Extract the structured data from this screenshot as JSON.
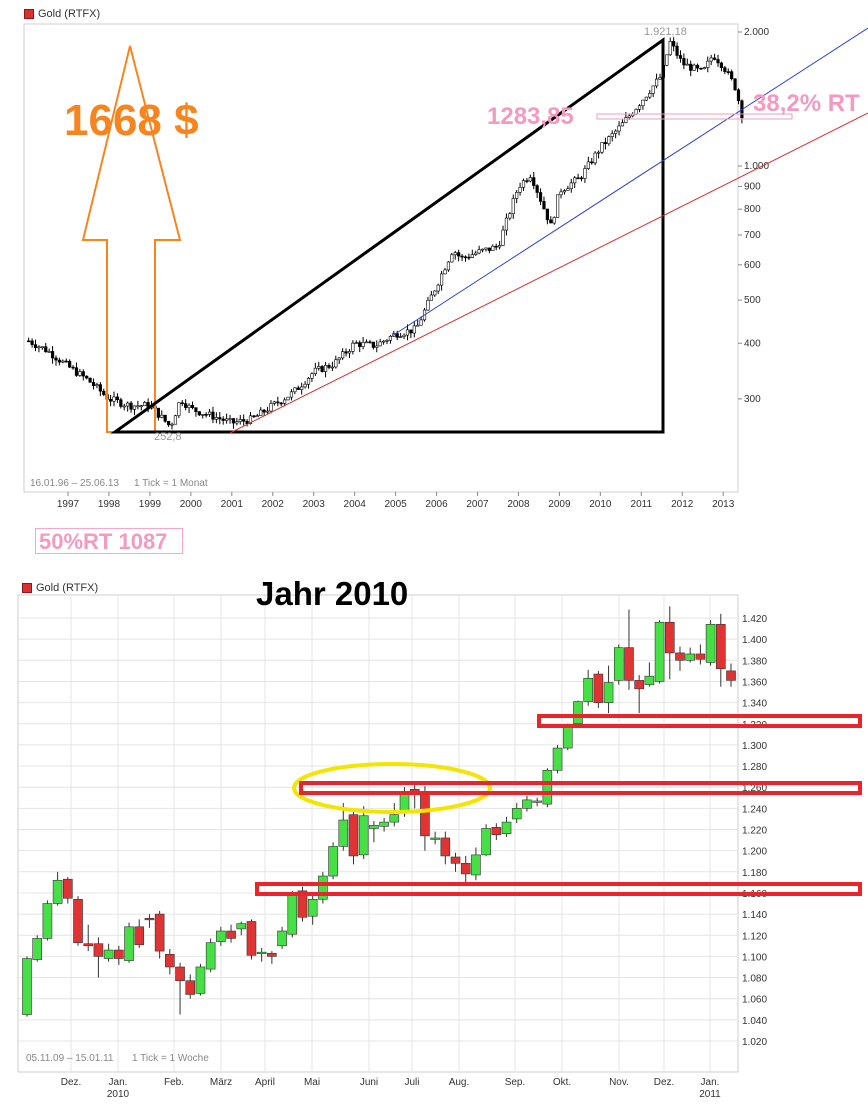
{
  "top_chart": {
    "legend": "Gold (RTFX)",
    "footer_range": "16.01.96 – 25.06.13",
    "footer_tick": "1 Tick = 1 Monat",
    "peak_label": "1.921,18",
    "low_label": "252,8",
    "big_label": "1668 $",
    "retracement_level": "1283,85",
    "retracement_label": "38,2% RT",
    "colors": {
      "orange": "#f7851e",
      "pink": "#f49ac1",
      "up": "#ffffff",
      "down": "#000000"
    }
  },
  "badge": "50%RT 1087",
  "bottom_chart": {
    "legend": "Gold (RTFX)",
    "heading": "Jahr 2010",
    "footer_range": "05.11.09 – 15.01.11",
    "footer_tick": "1 Tick = 1 Woche",
    "colors": {
      "up": "#46e046",
      "down": "#e03434",
      "yellow": "#f2e600",
      "red": "#e8252b"
    }
  },
  "chart_data": [
    {
      "type": "candlestick",
      "title": "Gold (RTFX)",
      "scale": "log",
      "x_labels": [
        "1997",
        "1998",
        "1999",
        "2000",
        "2001",
        "2002",
        "2003",
        "2004",
        "2005",
        "2006",
        "2007",
        "2008",
        "2009",
        "2010",
        "2011",
        "2012",
        "2013"
      ],
      "y_ticks": [
        2000,
        1000,
        900,
        800,
        700,
        600,
        500,
        400,
        300
      ],
      "y_tick_labels": [
        "2.000",
        "1.000",
        "900",
        "800",
        "700",
        "600",
        "500",
        "400",
        "300"
      ],
      "ylim": [
        230,
        2050
      ],
      "grid": false,
      "series": [
        {
          "x": [
            1996.04,
            1996.5,
            1997.0,
            1997.5,
            1998.0,
            1998.5,
            1999.0,
            1999.5,
            1999.75,
            2000.0,
            2000.5,
            2001.0,
            2001.5,
            2002.0,
            2002.5,
            2003.0,
            2003.5,
            2004.0,
            2004.5,
            2005.0,
            2005.5,
            2006.0,
            2006.4,
            2006.6,
            2007.0,
            2007.5,
            2008.0,
            2008.3,
            2008.8,
            2009.0,
            2009.5,
            2010.0,
            2010.5,
            2011.0,
            2011.5,
            2011.7,
            2012.0,
            2012.5,
            2012.75,
            2013.0,
            2013.3,
            2013.48
          ],
          "y": [
            405,
            385,
            355,
            330,
            300,
            290,
            290,
            260,
            300,
            285,
            275,
            265,
            270,
            290,
            310,
            345,
            360,
            400,
            395,
            420,
            430,
            540,
            650,
            620,
            640,
            660,
            900,
            960,
            730,
            880,
            940,
            1100,
            1230,
            1400,
            1600,
            1900,
            1700,
            1620,
            1780,
            1680,
            1500,
            1283
          ]
        }
      ],
      "annotations": [
        "1.921,18",
        "252,8",
        "1668 $",
        "1283,85",
        "38,2% RT"
      ]
    },
    {
      "type": "candlestick",
      "title": "Gold (RTFX)",
      "x_labels": [
        "Dez.",
        "Jan.",
        "Feb.",
        "März",
        "April",
        "Mai",
        "Juni",
        "Juli",
        "Aug.",
        "Sep.",
        "Okt.",
        "Nov.",
        "Dez.",
        "Jan."
      ],
      "x_sublabels": [
        "",
        "2010",
        "",
        "",
        "",
        "",
        "",
        "",
        "",
        "",
        "",
        "",
        "",
        "2011"
      ],
      "y_ticks": [
        1020,
        1040,
        1060,
        1080,
        1100,
        1120,
        1140,
        1160,
        1180,
        1200,
        1220,
        1240,
        1260,
        1280,
        1300,
        1320,
        1340,
        1360,
        1380,
        1400,
        1420
      ],
      "y_tick_labels": [
        "1.020",
        "1.040",
        "1.060",
        "1.080",
        "1.100",
        "1.120",
        "1.140",
        "1.160",
        "1.180",
        "1.200",
        "1.220",
        "1.240",
        "1.260",
        "1.280",
        "1.300",
        "1.320",
        "1.340",
        "1.360",
        "1.380",
        "1.400",
        "1.420"
      ],
      "ylim": [
        1010,
        1430
      ],
      "grid": true,
      "candles": [
        [
          1045,
          1098,
          1043,
          1100
        ],
        [
          1097,
          1117,
          1095,
          1120
        ],
        [
          1117,
          1150,
          1115,
          1153
        ],
        [
          1150,
          1172,
          1148,
          1180
        ],
        [
          1173,
          1155,
          1150,
          1175
        ],
        [
          1154,
          1113,
          1110,
          1157
        ],
        [
          1112,
          1110,
          1105,
          1130
        ],
        [
          1112,
          1100,
          1080,
          1118
        ],
        [
          1098,
          1106,
          1095,
          1112
        ],
        [
          1106,
          1098,
          1092,
          1110
        ],
        [
          1096,
          1128,
          1094,
          1132
        ],
        [
          1128,
          1111,
          1108,
          1135
        ],
        [
          1136,
          1135,
          1127,
          1140
        ],
        [
          1140,
          1105,
          1098,
          1143
        ],
        [
          1102,
          1090,
          1083,
          1107
        ],
        [
          1090,
          1077,
          1045,
          1094
        ],
        [
          1077,
          1064,
          1060,
          1083
        ],
        [
          1065,
          1090,
          1063,
          1093
        ],
        [
          1088,
          1113,
          1085,
          1117
        ],
        [
          1114,
          1124,
          1110,
          1128
        ],
        [
          1124,
          1117,
          1113,
          1130
        ],
        [
          1126,
          1131,
          1120,
          1133
        ],
        [
          1133,
          1101,
          1097,
          1135
        ],
        [
          1103,
          1104,
          1095,
          1108
        ],
        [
          1103,
          1100,
          1093,
          1105
        ],
        [
          1110,
          1124,
          1107,
          1128
        ],
        [
          1121,
          1158,
          1118,
          1162
        ],
        [
          1162,
          1137,
          1133,
          1166
        ],
        [
          1138,
          1154,
          1130,
          1160
        ],
        [
          1154,
          1176,
          1150,
          1180
        ],
        [
          1176,
          1204,
          1173,
          1208
        ],
        [
          1204,
          1229,
          1200,
          1245
        ],
        [
          1234,
          1195,
          1187,
          1240
        ],
        [
          1196,
          1233,
          1192,
          1242
        ],
        [
          1221,
          1224,
          1208,
          1228
        ],
        [
          1223,
          1227,
          1218,
          1231
        ],
        [
          1227,
          1234,
          1223,
          1245
        ],
        [
          1236,
          1255,
          1232,
          1260
        ],
        [
          1258,
          1256,
          1240,
          1262
        ],
        [
          1255,
          1214,
          1200,
          1261
        ],
        [
          1212,
          1212,
          1206,
          1218
        ],
        [
          1212,
          1195,
          1187,
          1218
        ],
        [
          1194,
          1188,
          1180,
          1198
        ],
        [
          1188,
          1178,
          1170,
          1195
        ],
        [
          1177,
          1196,
          1172,
          1203
        ],
        [
          1196,
          1221,
          1195,
          1225
        ],
        [
          1222,
          1215,
          1210,
          1226
        ],
        [
          1216,
          1227,
          1213,
          1232
        ],
        [
          1230,
          1240,
          1226,
          1245
        ],
        [
          1240,
          1248,
          1237,
          1252
        ],
        [
          1246,
          1247,
          1242,
          1250
        ],
        [
          1244,
          1276,
          1241,
          1278
        ],
        [
          1276,
          1297,
          1273,
          1300
        ],
        [
          1297,
          1318,
          1295,
          1320
        ],
        [
          1320,
          1341,
          1318,
          1342
        ],
        [
          1341,
          1363,
          1337,
          1371
        ],
        [
          1367,
          1340,
          1335,
          1370
        ],
        [
          1340,
          1359,
          1330,
          1375
        ],
        [
          1361,
          1392,
          1357,
          1395
        ],
        [
          1392,
          1361,
          1352,
          1428
        ],
        [
          1361,
          1353,
          1330,
          1366
        ],
        [
          1357,
          1365,
          1355,
          1378
        ],
        [
          1360,
          1416,
          1358,
          1418
        ],
        [
          1416,
          1387,
          1362,
          1431
        ],
        [
          1387,
          1380,
          1370,
          1393
        ],
        [
          1380,
          1386,
          1378,
          1392
        ],
        [
          1386,
          1381,
          1376,
          1395
        ],
        [
          1378,
          1414,
          1375,
          1418
        ],
        [
          1414,
          1372,
          1355,
          1424
        ],
        [
          1370,
          1361,
          1355,
          1377
        ]
      ],
      "annotations": [
        "Jahr 2010"
      ]
    }
  ]
}
